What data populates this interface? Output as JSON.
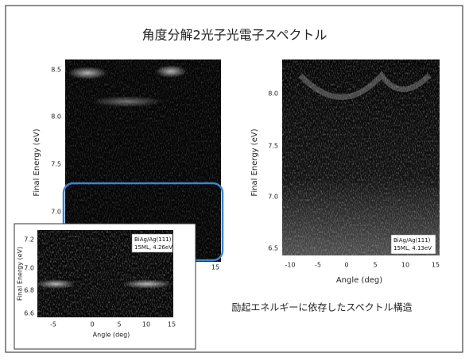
{
  "title": "角度分解2光子光電子スペクトル",
  "panels": [
    {
      "ylabel": "Final Energy (eV)",
      "yticks": [
        "8.5",
        "8.0",
        "7.5",
        "7.0"
      ],
      "xticks": [
        "15"
      ]
    },
    {
      "ylabel": "Final Energy (eV)",
      "yticks": [
        "8.0",
        "7.5",
        "7.0",
        "6.5"
      ],
      "xticks": [
        "-10",
        "-5",
        "0",
        "5",
        "10",
        "15"
      ],
      "xlabel": "Angle (deg)",
      "legend": [
        "BiAg/Ag(111)",
        "15ML, 4.13eV"
      ]
    },
    {
      "ylabel": "Final Energy (eV)",
      "yticks": [
        "7.2",
        "7.0",
        "6.8",
        "6.6"
      ],
      "xticks": [
        "-5",
        "0",
        "5",
        "10",
        "15"
      ],
      "xlabel": "Angle (deg)",
      "legend": [
        "BiAg/Ag(111)",
        "15ML, 4.26eV"
      ]
    }
  ],
  "caption": "励起エネルギーに依存したスペクトル構造"
}
